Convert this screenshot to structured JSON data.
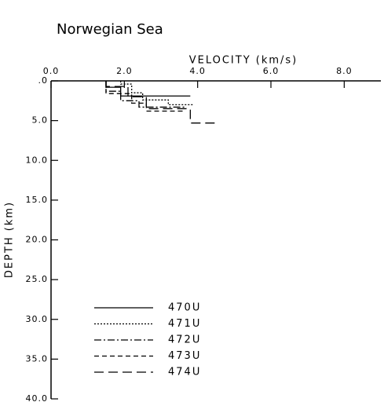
{
  "chart_data": {
    "type": "step-profile",
    "title": "Norwegian Sea",
    "x_label": "VELOCITY (km/s)",
    "y_label": "DEPTH (km)",
    "xlim": [
      0,
      9
    ],
    "ylim": [
      0,
      40
    ],
    "y_inverted": true,
    "xticks": [
      {
        "value": 0,
        "label": "0.0"
      },
      {
        "value": 2,
        "label": "2.0"
      },
      {
        "value": 4,
        "label": "4.0"
      },
      {
        "value": 6,
        "label": "6.0"
      },
      {
        "value": 8,
        "label": "8.0"
      }
    ],
    "yticks": [
      {
        "value": 0,
        "label": ".0"
      },
      {
        "value": 5,
        "label": "5.0"
      },
      {
        "value": 10,
        "label": "10.0"
      },
      {
        "value": 15,
        "label": "15.0"
      },
      {
        "value": 20,
        "label": "20.0"
      },
      {
        "value": 25,
        "label": "25.0"
      },
      {
        "value": 30,
        "label": "30.0"
      },
      {
        "value": 35,
        "label": "35.0"
      },
      {
        "value": 40,
        "label": "40.0"
      }
    ],
    "series": [
      {
        "name": "470U",
        "color": "#000000",
        "linestyle": "solid",
        "x": [
          1.5,
          1.5,
          1.9,
          1.9,
          3.8
        ],
        "values": [
          0,
          0.8,
          0.8,
          1.9,
          1.9
        ]
      },
      {
        "name": "471U",
        "color": "#000000",
        "linestyle": "dotted",
        "x": [
          1.9,
          1.9,
          2.2,
          2.2,
          2.5,
          2.5,
          3.2,
          3.2,
          3.9
        ],
        "values": [
          0,
          0.4,
          0.4,
          1.5,
          1.5,
          2.4,
          2.4,
          3.0,
          3.0
        ]
      },
      {
        "name": "472U",
        "color": "#000000",
        "linestyle": "dashdot",
        "x": [
          1.5,
          1.5,
          1.9,
          1.9,
          2.4,
          2.4,
          3.7
        ],
        "values": [
          0,
          1.3,
          1.3,
          2.5,
          2.5,
          3.3,
          3.3
        ]
      },
      {
        "name": "473U",
        "color": "#000000",
        "linestyle": "dashed",
        "x": [
          1.5,
          1.5,
          2.2,
          2.2,
          2.6,
          2.6,
          3.6
        ],
        "values": [
          0,
          1.6,
          1.6,
          2.8,
          2.8,
          3.8,
          3.8
        ]
      },
      {
        "name": "474U",
        "color": "#000000",
        "linestyle": "longdash",
        "x": [
          1.5,
          1.5,
          2.1,
          2.1,
          2.6,
          2.6,
          3.8,
          3.8,
          4.5
        ],
        "values": [
          0,
          0.7,
          0.7,
          2.0,
          2.0,
          3.5,
          3.5,
          5.3,
          5.3
        ]
      }
    ]
  }
}
